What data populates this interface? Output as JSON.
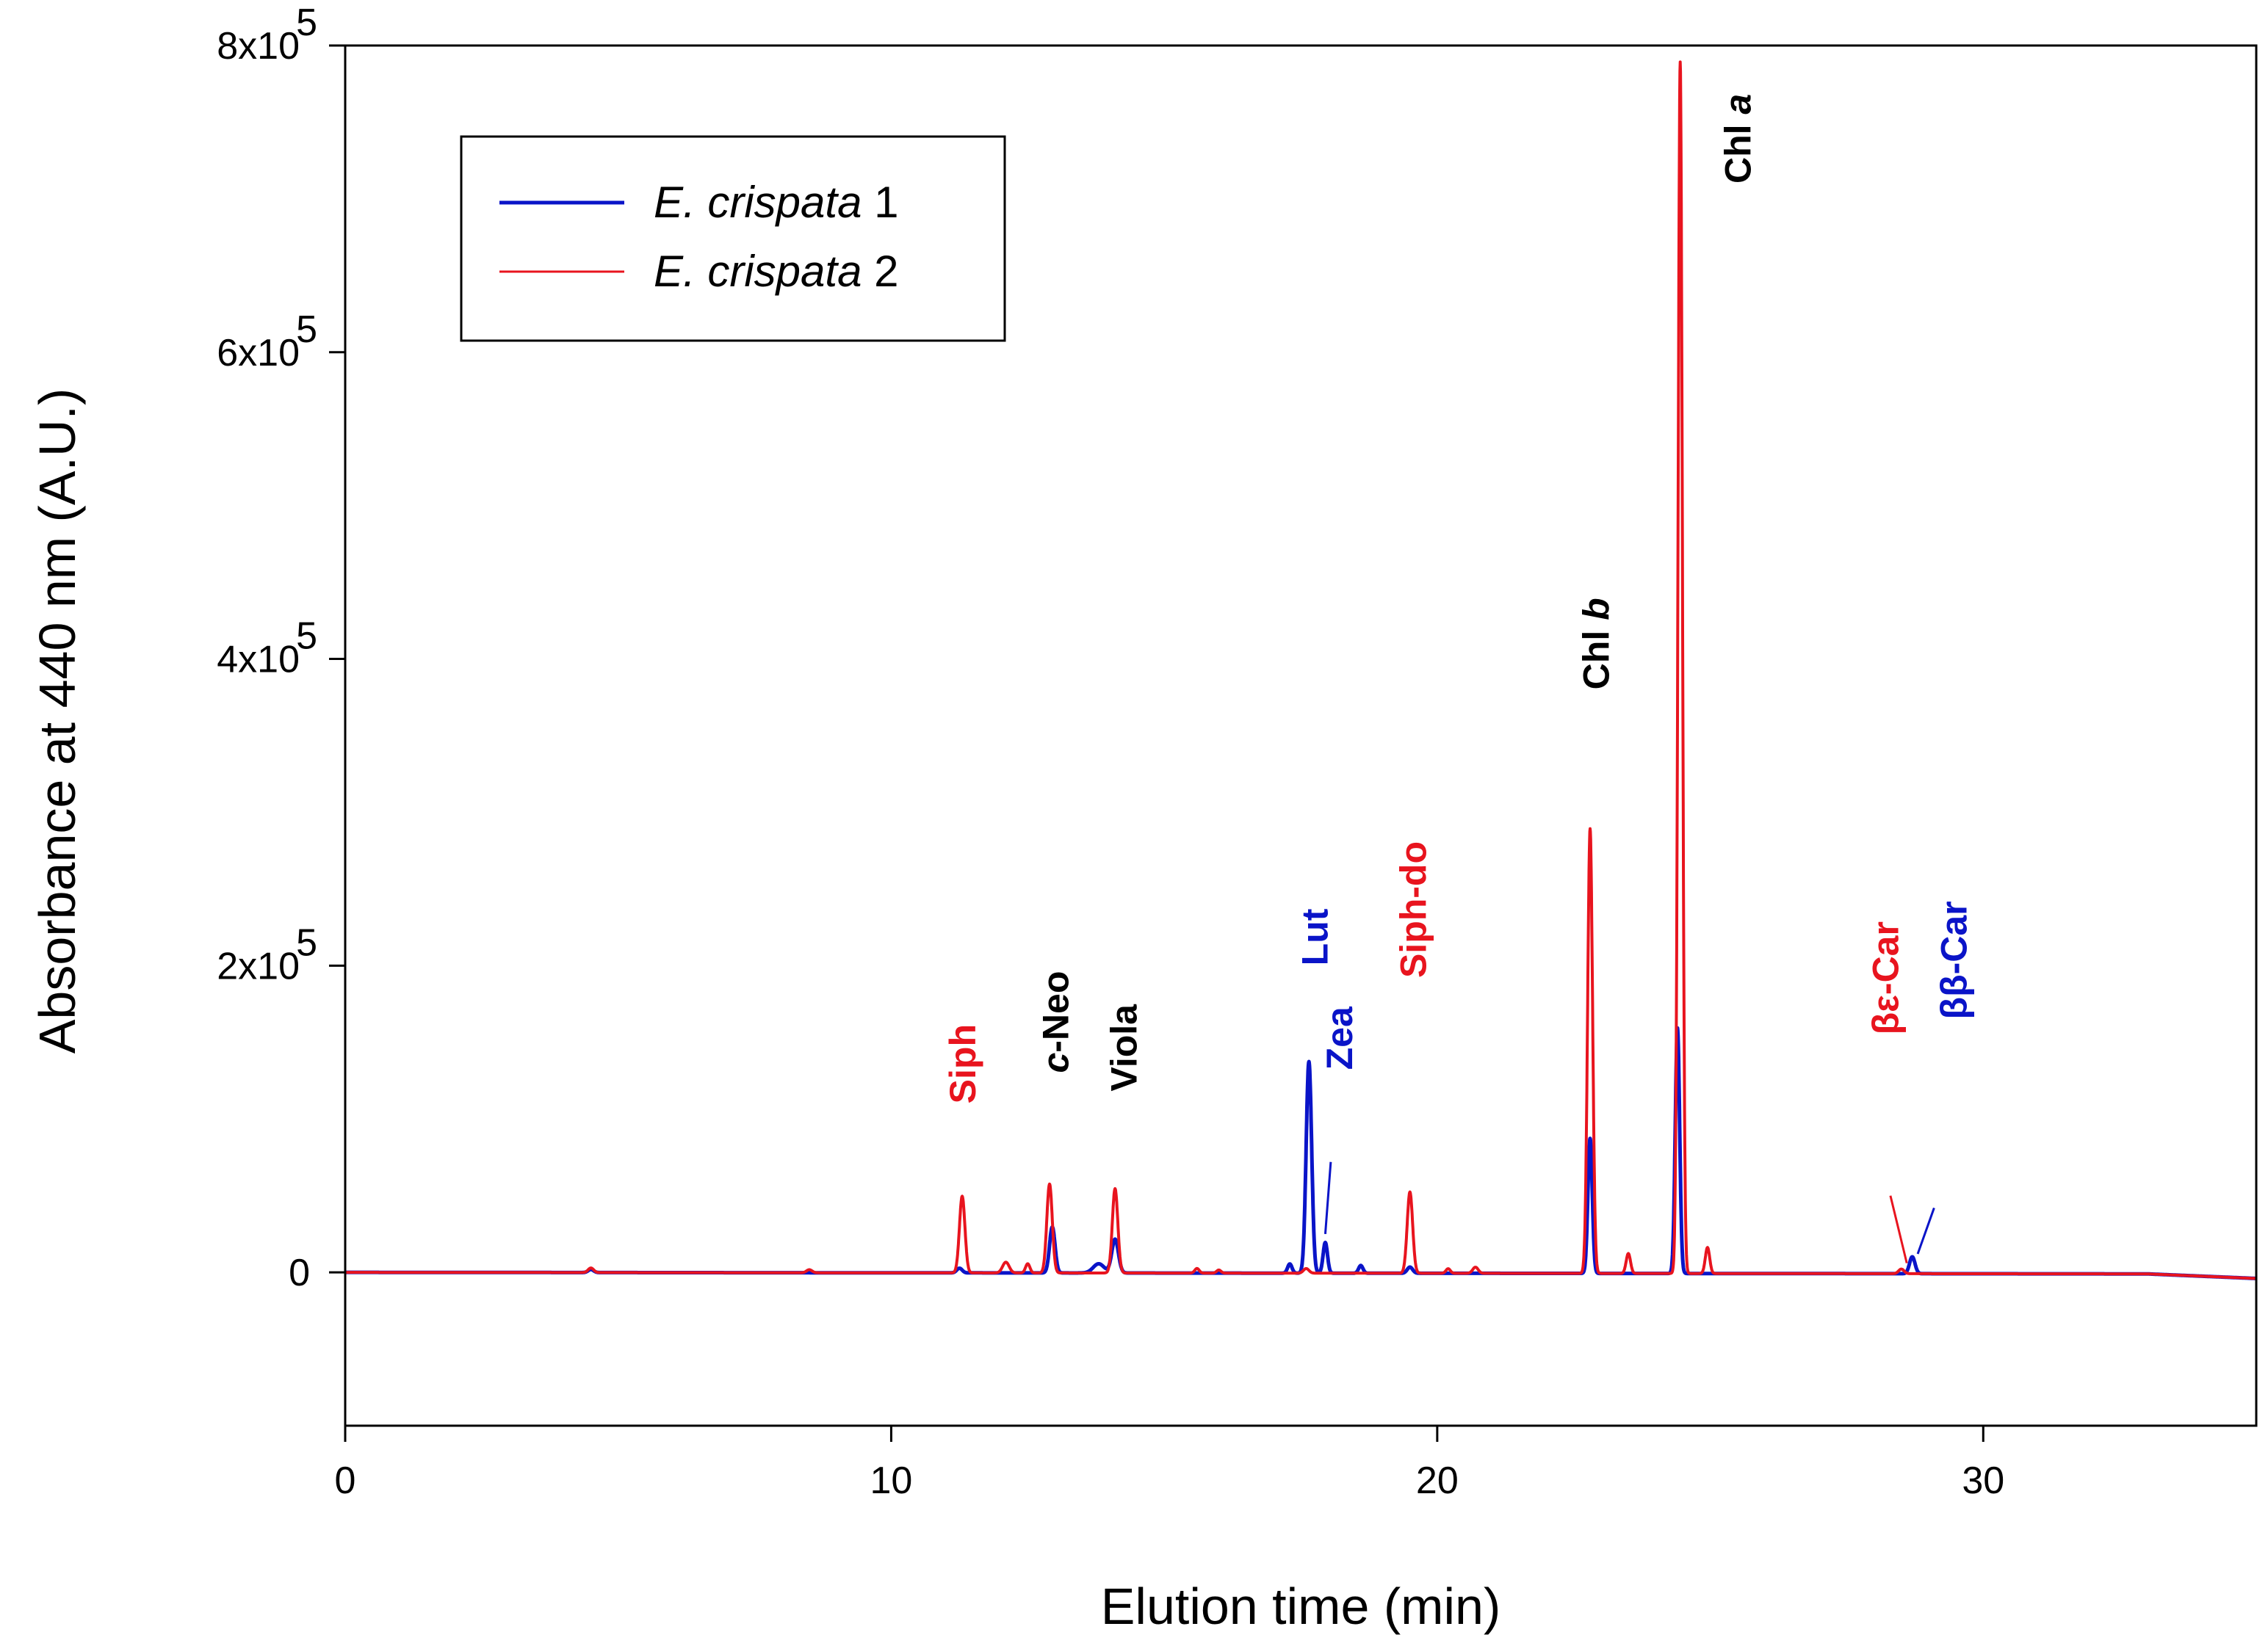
{
  "chart_data": {
    "type": "line",
    "title": "",
    "xlabel": "Elution time (min)",
    "ylabel": "Absorbance at 440 nm (A.U.)",
    "xlim": [
      0,
      35
    ],
    "ylim": [
      -100000,
      800000
    ],
    "x_ticks": [
      0,
      10,
      20,
      30
    ],
    "x_tick_labels": [
      "0",
      "10",
      "20",
      "30"
    ],
    "y_ticks": [
      {
        "value": 0,
        "mantissa": "0",
        "exp": ""
      },
      {
        "value": 200000,
        "mantissa": "2x10",
        "exp": "5"
      },
      {
        "value": 400000,
        "mantissa": "4x10",
        "exp": "5"
      },
      {
        "value": 600000,
        "mantissa": "6x10",
        "exp": "5"
      },
      {
        "value": 800000,
        "mantissa": "8x10",
        "exp": "5"
      }
    ],
    "legend": [
      {
        "italic": "E. crispata",
        "suffix": " 1",
        "color": "#0a14c8"
      },
      {
        "italic": "E. crispata",
        "suffix": " 2",
        "color": "#e8141e"
      }
    ],
    "series": [
      {
        "name": "E. crispata 1",
        "color": "#0a14c8",
        "baseline": [
          [
            0,
            0
          ],
          [
            33,
            -1000
          ],
          [
            35,
            -4000
          ]
        ],
        "peaks": [
          {
            "x": 4.5,
            "y": 2000,
            "w": 0.05
          },
          {
            "x": 11.25,
            "y": 3000,
            "w": 0.05
          },
          {
            "x": 12.95,
            "y": 30000,
            "w": 0.05
          },
          {
            "x": 13.8,
            "y": 6000,
            "w": 0.1
          },
          {
            "x": 14.1,
            "y": 22000,
            "w": 0.06
          },
          {
            "x": 17.3,
            "y": 6000,
            "w": 0.04
          },
          {
            "x": 17.65,
            "y": 138000,
            "w": 0.05
          },
          {
            "x": 17.95,
            "y": 20000,
            "w": 0.04
          },
          {
            "x": 18.6,
            "y": 5000,
            "w": 0.04
          },
          {
            "x": 19.5,
            "y": 4000,
            "w": 0.05
          },
          {
            "x": 22.8,
            "y": 88000,
            "w": 0.04
          },
          {
            "x": 24.4,
            "y": 160000,
            "w": 0.04
          },
          {
            "x": 28.7,
            "y": 11000,
            "w": 0.05
          }
        ]
      },
      {
        "name": "E. crispata 2",
        "color": "#e8141e",
        "baseline": [
          [
            0,
            0
          ],
          [
            33,
            -1000
          ],
          [
            35,
            -4000
          ]
        ],
        "peaks": [
          {
            "x": 4.5,
            "y": 3000,
            "w": 0.05
          },
          {
            "x": 8.5,
            "y": 2000,
            "w": 0.05
          },
          {
            "x": 11.3,
            "y": 50000,
            "w": 0.05
          },
          {
            "x": 12.1,
            "y": 7000,
            "w": 0.06
          },
          {
            "x": 12.5,
            "y": 6000,
            "w": 0.04
          },
          {
            "x": 12.9,
            "y": 58000,
            "w": 0.05
          },
          {
            "x": 14.1,
            "y": 55000,
            "w": 0.05
          },
          {
            "x": 15.6,
            "y": 3000,
            "w": 0.04
          },
          {
            "x": 16.0,
            "y": 2000,
            "w": 0.04
          },
          {
            "x": 17.6,
            "y": 3000,
            "w": 0.05
          },
          {
            "x": 19.5,
            "y": 53000,
            "w": 0.05
          },
          {
            "x": 20.2,
            "y": 3000,
            "w": 0.04
          },
          {
            "x": 20.7,
            "y": 4000,
            "w": 0.05
          },
          {
            "x": 22.8,
            "y": 290000,
            "w": 0.045
          },
          {
            "x": 23.5,
            "y": 13000,
            "w": 0.04
          },
          {
            "x": 24.45,
            "y": 790000,
            "w": 0.04
          },
          {
            "x": 24.95,
            "y": 17000,
            "w": 0.04
          },
          {
            "x": 28.5,
            "y": 3000,
            "w": 0.05
          }
        ]
      }
    ],
    "peak_labels": [
      {
        "text": "Siph",
        "italic_prefix": "",
        "x": 11.3,
        "y": 110000,
        "color": "#e8141e"
      },
      {
        "text": "-Neo",
        "italic_prefix": "c",
        "x": 13.0,
        "y": 130000,
        "color": "#000000"
      },
      {
        "text": "Viola",
        "italic_prefix": "",
        "x": 14.25,
        "y": 118000,
        "color": "#000000"
      },
      {
        "text": "Lut",
        "italic_prefix": "",
        "x": 17.75,
        "y": 200000,
        "color": "#0a14c8"
      },
      {
        "text": "Zea",
        "italic_prefix": "",
        "x": 18.2,
        "y": 132000,
        "color": "#0a14c8"
      },
      {
        "text": "Siph-do",
        "italic_prefix": "",
        "x": 19.55,
        "y": 192000,
        "color": "#e8141e"
      },
      {
        "text": "Chl ",
        "italic_suffix": "b",
        "x": 22.9,
        "y": 380000,
        "color": "#000000"
      },
      {
        "text": "Chl ",
        "italic_suffix": "a",
        "x": 25.5,
        "y": 710000,
        "color": "#000000"
      },
      {
        "text": "βε-Car",
        "italic_prefix": "",
        "x": 28.2,
        "y": 155000,
        "color": "#e8141e",
        "bold": false
      },
      {
        "text": "ββ-Car",
        "italic_prefix": "",
        "x": 29.45,
        "y": 165000,
        "color": "#0a14c8",
        "bold": false
      }
    ],
    "annotations": [
      {
        "from": [
          18.05,
          72000
        ],
        "to": [
          17.95,
          25000
        ],
        "color": "#0a14c8"
      },
      {
        "from": [
          28.3,
          50000
        ],
        "to": [
          28.6,
          6000
        ],
        "color": "#e8141e"
      },
      {
        "from": [
          29.1,
          42000
        ],
        "to": [
          28.8,
          12000
        ],
        "color": "#0a14c8"
      }
    ]
  }
}
